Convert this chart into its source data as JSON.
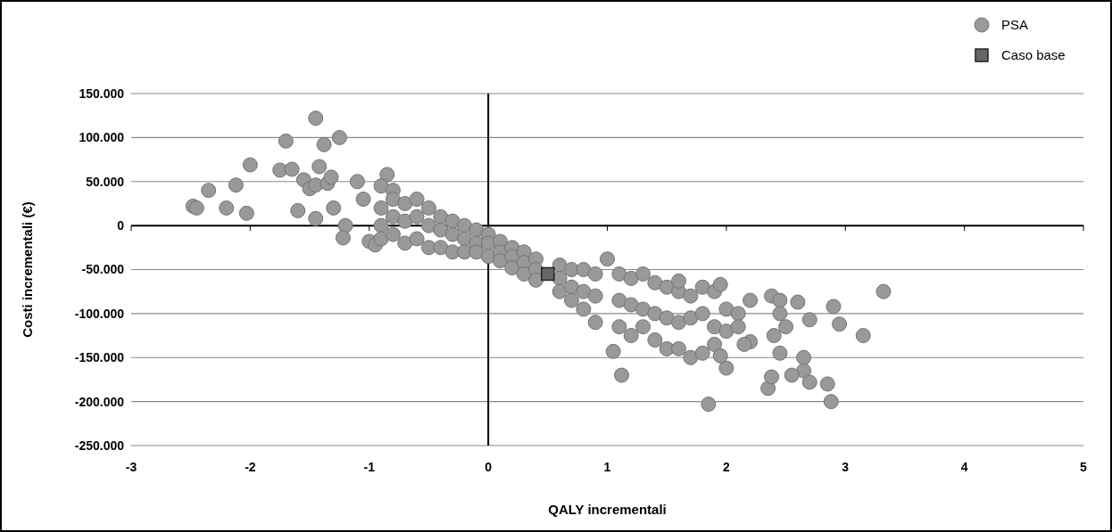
{
  "chart_data": {
    "type": "scatter",
    "xlabel": "QALY incrementali",
    "ylabel": "Costi incrementali (€)",
    "xlim": [
      -3,
      5
    ],
    "xticks": [
      -3,
      -2,
      -1,
      0,
      1,
      2,
      3,
      4,
      5
    ],
    "ylim": [
      -250000,
      150000
    ],
    "yticks": [
      {
        "value": 150000,
        "label": "150.000"
      },
      {
        "value": 100000,
        "label": "100.000"
      },
      {
        "value": 50000,
        "label": "50.000"
      },
      0,
      {
        "value": -50000,
        "label": "-50.000"
      },
      {
        "value": -100000,
        "label": "-100.000"
      },
      {
        "value": -150000,
        "label": "-150.000"
      },
      {
        "value": -200000,
        "label": "-200.000"
      },
      {
        "value": -250000,
        "label": "-250.000"
      }
    ],
    "grid": "y",
    "legend": "top right",
    "ref_lines": [
      {
        "axis": "x",
        "value": 0,
        "color": "#000000"
      }
    ],
    "series": [
      {
        "name": "PSA",
        "color": "#999999",
        "marker": "circle",
        "x": [
          -2.48,
          -2.45,
          -2.35,
          -2.2,
          -2.12,
          -2.03,
          -2.0,
          -1.7,
          -1.75,
          -1.65,
          -1.6,
          -1.55,
          -1.5,
          -1.45,
          -1.45,
          -1.42,
          -1.38,
          -1.35,
          -1.32,
          -1.25,
          -1.45,
          -1.3,
          -1.2,
          -1.22,
          -1.1,
          -1.05,
          -1.0,
          -0.85,
          -0.9,
          -0.8,
          -0.95,
          -0.9,
          -0.9,
          -0.9,
          -0.8,
          -0.8,
          -0.8,
          -0.7,
          -0.7,
          -0.7,
          -0.6,
          -0.6,
          -0.6,
          -0.5,
          -0.5,
          -0.5,
          -0.4,
          -0.4,
          -0.4,
          -0.3,
          -0.3,
          -0.3,
          -0.2,
          -0.2,
          -0.2,
          -0.1,
          -0.1,
          -0.1,
          0,
          0,
          0,
          0.1,
          0.1,
          0.1,
          0.2,
          0.2,
          0.2,
          0.3,
          0.3,
          0.3,
          0.4,
          0.4,
          0.4,
          0.6,
          0.6,
          0.6,
          0.7,
          0.7,
          0.7,
          0.8,
          0.8,
          0.8,
          0.9,
          0.9,
          0.9,
          1.1,
          1.1,
          1.1,
          1.2,
          1.2,
          1.2,
          1.3,
          1.3,
          1.3,
          1.4,
          1.4,
          1.4,
          1.5,
          1.5,
          1.5,
          1.6,
          1.6,
          1.6,
          1.7,
          1.7,
          1.7,
          1.8,
          1.8,
          1.8,
          1.9,
          1.9,
          1.9,
          2.0,
          2.0,
          2.1,
          2.1,
          3.32,
          2.9,
          2.95,
          3.15,
          2.6,
          2.7,
          2.38,
          2.45,
          2.45,
          2.5,
          2.4,
          2.45,
          2.65,
          2.65,
          2.55,
          2.7,
          2.85,
          2.88,
          2.35,
          2.38,
          1.85,
          1.12,
          1.05,
          2.0,
          1.95,
          1.6,
          1.0,
          2.2,
          2.15,
          2.2,
          1.95
        ],
        "values": [
          22000,
          20000,
          40000,
          20000,
          46000,
          14000,
          69000,
          96000,
          63000,
          64000,
          17000,
          52000,
          42000,
          122000,
          46000,
          67000,
          92000,
          48000,
          55000,
          100000,
          8000,
          20000,
          0,
          -14000,
          50000,
          30000,
          -18000,
          58000,
          45000,
          40000,
          -22000,
          20000,
          0,
          -15000,
          30000,
          10000,
          -10000,
          25000,
          5000,
          -20000,
          30000,
          10000,
          -15000,
          20000,
          0,
          -25000,
          10000,
          -5000,
          -25000,
          5000,
          -10000,
          -30000,
          0,
          -15000,
          -30000,
          -5000,
          -20000,
          -30000,
          -10000,
          -20000,
          -35000,
          -18000,
          -30000,
          -40000,
          -25000,
          -35000,
          -48000,
          -30000,
          -42000,
          -55000,
          -38000,
          -50000,
          -62000,
          -45000,
          -60000,
          -75000,
          -50000,
          -70000,
          -85000,
          -50000,
          -75000,
          -95000,
          -55000,
          -80000,
          -110000,
          -55000,
          -85000,
          -115000,
          -60000,
          -90000,
          -125000,
          -55000,
          -95000,
          -115000,
          -65000,
          -100000,
          -130000,
          -70000,
          -105000,
          -140000,
          -75000,
          -110000,
          -140000,
          -80000,
          -105000,
          -150000,
          -70000,
          -100000,
          -145000,
          -75000,
          -115000,
          -135000,
          -95000,
          -120000,
          -100000,
          -115000,
          -75000,
          -92000,
          -112000,
          -125000,
          -87000,
          -107000,
          -80000,
          -85000,
          -100000,
          -115000,
          -125000,
          -145000,
          -150000,
          -165000,
          -170000,
          -178000,
          -180000,
          -200000,
          -185000,
          -172000,
          -203000,
          -170000,
          -143000,
          -162000,
          -148000,
          -63000,
          -38000,
          -132000,
          -135000,
          -85000,
          -67000
        ]
      },
      {
        "name": "Caso base",
        "color": "#666666",
        "marker": "square",
        "x": [
          0.5
        ],
        "values": [
          -55000
        ]
      }
    ]
  }
}
